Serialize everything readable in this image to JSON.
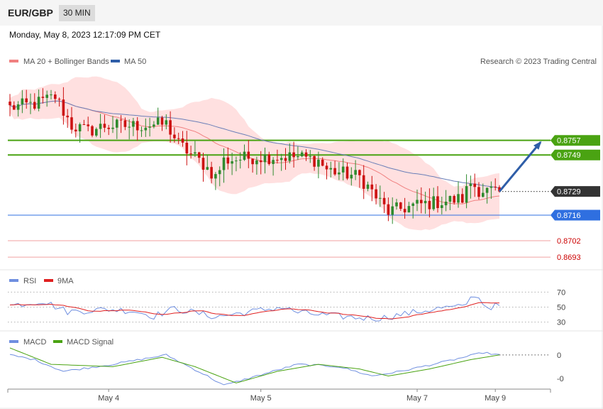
{
  "header": {
    "symbol": "EUR/GBP",
    "timeframe": "30 MIN",
    "datetime": "Monday, May 8, 2023 12:17:09 PM CET"
  },
  "colors": {
    "up": "#2e8b2e",
    "down": "#cc1111",
    "ma20": "#f08080",
    "band_fill": "#ffd6d6",
    "ma50": "#6a7fb8",
    "green_level": "#4aa312",
    "blue_level": "#2f6fe0",
    "red_level": "#f0a0a0",
    "arrow": "#2f5ea8",
    "rsi": "#6f8fe0",
    "rsi_ma": "#e02020",
    "macd": "#6f8fe0",
    "macd_signal": "#4aa312"
  },
  "chart_data": {
    "type": "candlestick",
    "price_legend": [
      {
        "name": "MA 20 + Bollinger Bands",
        "color": "#f08080"
      },
      {
        "name": "MA 50",
        "color": "#2f5ea8"
      }
    ],
    "credit": "Research © 2023 Trading Central",
    "price_range": [
      0.8688,
      0.8795
    ],
    "x_ticks": [
      {
        "label": "May 4",
        "index": 24
      },
      {
        "label": "May 5",
        "index": 61
      },
      {
        "label": "May 7",
        "index": 99
      },
      {
        "label": "May 9",
        "index": 118
      }
    ],
    "bars_count": 120,
    "levels": [
      {
        "value": 0.8757,
        "label": "0.8757",
        "kind": "target",
        "tag": true
      },
      {
        "value": 0.8749,
        "label": "0.8749",
        "kind": "target",
        "tag": true
      },
      {
        "value": 0.8729,
        "label": "0.8729",
        "kind": "current",
        "tag": true
      },
      {
        "value": 0.8716,
        "label": "0.8716",
        "kind": "pivot",
        "tag": true
      },
      {
        "value": 0.8702,
        "label": "0.8702",
        "kind": "support",
        "tag": false
      },
      {
        "value": 0.8693,
        "label": "0.8693",
        "kind": "support",
        "tag": false
      }
    ],
    "close_anchors": [
      [
        0,
        0.8775
      ],
      [
        6,
        0.8777
      ],
      [
        11,
        0.8781
      ],
      [
        15,
        0.8765
      ],
      [
        19,
        0.8762
      ],
      [
        23,
        0.8765
      ],
      [
        30,
        0.8765
      ],
      [
        38,
        0.8766
      ],
      [
        41,
        0.8755
      ],
      [
        47,
        0.8744
      ],
      [
        50,
        0.8737
      ],
      [
        52,
        0.8746
      ],
      [
        60,
        0.8748
      ],
      [
        70,
        0.8748
      ],
      [
        75,
        0.8746
      ],
      [
        77,
        0.8741
      ],
      [
        85,
        0.8737
      ],
      [
        88,
        0.8729
      ],
      [
        90,
        0.8723
      ],
      [
        92,
        0.8718
      ],
      [
        100,
        0.8722
      ],
      [
        110,
        0.8725
      ],
      [
        112,
        0.8734
      ],
      [
        114,
        0.873
      ],
      [
        117,
        0.8729
      ],
      [
        119,
        0.8729
      ]
    ],
    "arrow": {
      "from_index": 119,
      "from_value": 0.8729,
      "to_index": 129,
      "to_value": 0.8756
    },
    "rsi": {
      "legend": [
        "RSI",
        "9MA"
      ],
      "range": [
        22,
        78
      ],
      "ticks": [
        70,
        50,
        30
      ],
      "dotted": [
        70,
        50,
        30
      ],
      "anchors": [
        [
          0,
          52
        ],
        [
          8,
          58
        ],
        [
          14,
          44
        ],
        [
          24,
          47
        ],
        [
          30,
          45
        ],
        [
          35,
          38
        ],
        [
          40,
          48
        ],
        [
          50,
          37
        ],
        [
          60,
          45
        ],
        [
          66,
          50
        ],
        [
          70,
          43
        ],
        [
          75,
          40
        ],
        [
          84,
          36
        ],
        [
          90,
          35
        ],
        [
          95,
          40
        ],
        [
          105,
          49
        ],
        [
          110,
          50
        ],
        [
          113,
          67
        ],
        [
          116,
          50
        ],
        [
          119,
          52
        ]
      ]
    },
    "macd": {
      "legend": [
        "MACD",
        "MACD Signal"
      ],
      "range": [
        -0.0014,
        0.0003
      ],
      "ticks": [
        {
          "value": 0,
          "label": "0"
        },
        {
          "value": -0.001,
          "label": "-0"
        }
      ],
      "zero_dotted": true,
      "macd_anchors": [
        [
          0,
          0.0
        ],
        [
          6,
          -0.0002
        ],
        [
          13,
          -0.0007
        ],
        [
          25,
          -0.0004
        ],
        [
          38,
          0.0
        ],
        [
          48,
          -0.0009
        ],
        [
          52,
          -0.0013
        ],
        [
          60,
          -0.0009
        ],
        [
          70,
          -0.0004
        ],
        [
          80,
          -0.0005
        ],
        [
          88,
          -0.0009
        ],
        [
          95,
          -0.0007
        ],
        [
          108,
          -0.0002
        ],
        [
          115,
          0.0001
        ],
        [
          119,
          0.0
        ]
      ],
      "signal_anchors": [
        [
          0,
          0.0003
        ],
        [
          10,
          -0.0004
        ],
        [
          25,
          -0.0005
        ],
        [
          37,
          -0.0001
        ],
        [
          45,
          -0.0005
        ],
        [
          55,
          -0.0012
        ],
        [
          65,
          -0.0007
        ],
        [
          75,
          -0.0004
        ],
        [
          85,
          -0.0006
        ],
        [
          92,
          -0.0009
        ],
        [
          102,
          -0.0006
        ],
        [
          112,
          -0.0002
        ],
        [
          119,
          0.0
        ]
      ]
    }
  }
}
